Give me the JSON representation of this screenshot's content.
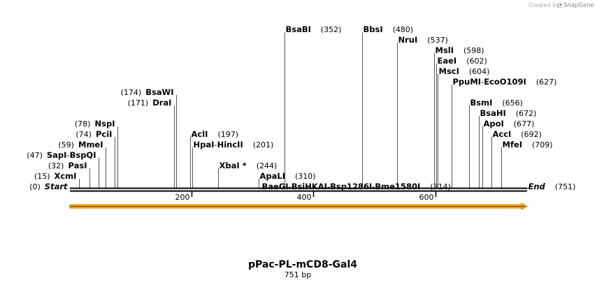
{
  "watermark": {
    "prefix": "Created by",
    "brand": "SnapGene"
  },
  "plasmid": {
    "name": "pPac-PL-mCD8-Gal4",
    "length_label": "751 bp",
    "length": 751
  },
  "scale": {
    "ticks": [
      "200",
      "400",
      "600"
    ],
    "tick_values": [
      200,
      400,
      600
    ]
  },
  "feature": {
    "name": "orientation-arrow",
    "color": "#f2a516",
    "start": 1,
    "end": 751
  },
  "sites": [
    {
      "name": "Start",
      "pos": "(0)",
      "bp": 0,
      "row": 15,
      "end": true,
      "side": "left"
    },
    {
      "name": "XcmI",
      "pos": "(15)",
      "bp": 15,
      "row": 14,
      "side": "left"
    },
    {
      "name": "PasI",
      "pos": "(32)",
      "bp": 32,
      "row": 13,
      "side": "left"
    },
    {
      "names": [
        "SapI",
        "BspQI"
      ],
      "pos": "(47)",
      "bp": 47,
      "row": 12,
      "side": "left"
    },
    {
      "name": "MmeI",
      "pos": "(59)",
      "bp": 59,
      "row": 11,
      "side": "left"
    },
    {
      "name": "PciI",
      "pos": "(74)",
      "bp": 74,
      "row": 10,
      "side": "left"
    },
    {
      "name": "NspI",
      "pos": "(78)",
      "bp": 78,
      "row": 9,
      "side": "left"
    },
    {
      "name": "DraI",
      "pos": "(171)",
      "bp": 171,
      "row": 7,
      "side": "left"
    },
    {
      "name": "BsaWI",
      "pos": "(174)",
      "bp": 174,
      "row": 6,
      "side": "left"
    },
    {
      "name": "AclI",
      "pos": "(197)",
      "bp": 197,
      "row": 10,
      "side": "right"
    },
    {
      "names": [
        "HpaI",
        "HincII"
      ],
      "pos": "(201)",
      "bp": 201,
      "row": 11,
      "side": "right"
    },
    {
      "name": "XbaI *",
      "pos": "(244)",
      "bp": 244,
      "row": 13,
      "side": "right"
    },
    {
      "name": "ApaLI",
      "pos": "(310)",
      "bp": 310,
      "row": 14,
      "side": "right"
    },
    {
      "names": [
        "BaeGI",
        "BsiHKAI",
        "Bsp1286I",
        "Bme1580I"
      ],
      "pos": "(314)",
      "bp": 314,
      "row": 15,
      "side": "right"
    },
    {
      "name": "BsaBI",
      "pos": "(352)",
      "bp": 352,
      "row": 0,
      "side": "right"
    },
    {
      "name": "BbsI",
      "pos": "(480)",
      "bp": 480,
      "row": 0,
      "side": "right"
    },
    {
      "name": "NruI",
      "pos": "(537)",
      "bp": 537,
      "row": 1,
      "side": "right"
    },
    {
      "name": "MslI",
      "pos": "(598)",
      "bp": 598,
      "row": 2,
      "side": "right"
    },
    {
      "name": "EaeI",
      "pos": "(602)",
      "bp": 602,
      "row": 3,
      "side": "right"
    },
    {
      "name": "MscI",
      "pos": "(604)",
      "bp": 604,
      "row": 4,
      "side": "right"
    },
    {
      "names": [
        "PpuMI",
        "EcoO109I"
      ],
      "pos": "(627)",
      "bp": 627,
      "row": 5,
      "side": "right"
    },
    {
      "name": "BsmI",
      "pos": "(656)",
      "bp": 656,
      "row": 7,
      "side": "right"
    },
    {
      "name": "BsaHI",
      "pos": "(672)",
      "bp": 672,
      "row": 8,
      "side": "right"
    },
    {
      "name": "ApoI",
      "pos": "(677)",
      "bp": 677,
      "row": 9,
      "side": "right"
    },
    {
      "name": "AccI",
      "pos": "(692)",
      "bp": 692,
      "row": 10,
      "side": "right"
    },
    {
      "name": "MfeI",
      "pos": "(709)",
      "bp": 709,
      "row": 11,
      "side": "right"
    },
    {
      "name": "End",
      "pos": "(751)",
      "bp": 751,
      "row": 15,
      "end": true,
      "side": "right"
    }
  ]
}
